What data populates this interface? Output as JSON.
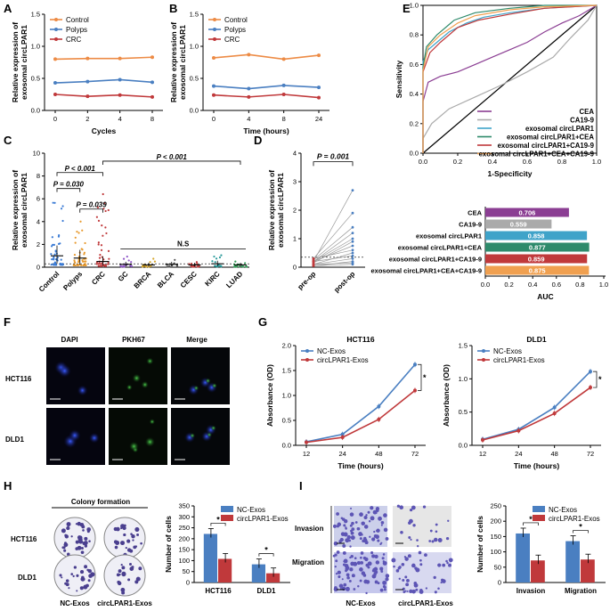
{
  "colors": {
    "control": "#ED8B45",
    "polyps": "#4A7FC1",
    "crc": "#C0393B",
    "nc": "#4A7FC1",
    "circ": "#C0393B",
    "cea": "#8B3E93",
    "ca199": "#AAAAAA",
    "circ_only": "#3FA3C9",
    "circ_cea": "#2E8A6B",
    "circ_ca199": "#C0393B",
    "circ_all": "#F0A050"
  },
  "panels": {
    "A": {
      "label": "A"
    },
    "B": {
      "label": "B"
    },
    "C": {
      "label": "C"
    },
    "D": {
      "label": "D"
    },
    "E": {
      "label": "E"
    },
    "F": {
      "label": "F"
    },
    "G": {
      "label": "G"
    },
    "H": {
      "label": "H"
    },
    "I": {
      "label": "I"
    }
  },
  "chart_data": [
    {
      "id": "A",
      "type": "line",
      "xlabel": "Cycles",
      "ylabel": "Relative expression of exosomal circLPAR1",
      "x": [
        0,
        2,
        4,
        8
      ],
      "ylim": [
        0,
        1.5
      ],
      "yticks": [
        0.0,
        0.5,
        1.0,
        1.5
      ],
      "series": [
        {
          "name": "Control",
          "values": [
            0.8,
            0.81,
            0.81,
            0.83
          ]
        },
        {
          "name": "Polyps",
          "values": [
            0.43,
            0.45,
            0.48,
            0.44
          ]
        },
        {
          "name": "CRC",
          "values": [
            0.25,
            0.22,
            0.24,
            0.21
          ]
        }
      ],
      "legend": "top-left"
    },
    {
      "id": "B",
      "type": "line",
      "xlabel": "Time (hours)",
      "ylabel": "Relative expression of exosomal circLPAR1",
      "x": [
        0,
        4,
        8,
        24
      ],
      "ylim": [
        0,
        1.5
      ],
      "yticks": [
        0.0,
        0.5,
        1.0,
        1.5
      ],
      "series": [
        {
          "name": "Control",
          "values": [
            0.82,
            0.87,
            0.8,
            0.86
          ]
        },
        {
          "name": "Polyps",
          "values": [
            0.38,
            0.34,
            0.39,
            0.36
          ]
        },
        {
          "name": "CRC",
          "values": [
            0.24,
            0.21,
            0.25,
            0.2
          ]
        }
      ],
      "legend": "top-left"
    },
    {
      "id": "C",
      "type": "scatter",
      "ylabel": "Relative expression of exosomal circLPAR1",
      "categories": [
        "Control",
        "Polyps",
        "CRC",
        "GC",
        "BRCA",
        "BLCA",
        "CESC",
        "KIRC",
        "LUAD"
      ],
      "ylim": [
        0,
        10
      ],
      "yticks": [
        0,
        2,
        4,
        6,
        8,
        10
      ],
      "medians": [
        1.0,
        0.8,
        0.5,
        0.25,
        0.2,
        0.25,
        0.2,
        0.3,
        0.2
      ],
      "maxima": [
        6.3,
        4.2,
        7.2,
        1.0,
        0.8,
        1.0,
        0.6,
        1.1,
        0.8
      ],
      "annotations": [
        {
          "text": "P = 0.030"
        },
        {
          "text": "P = 0.039"
        },
        {
          "text": "P < 0.001"
        },
        {
          "text": "P < 0.001"
        },
        {
          "text": "N.S"
        }
      ]
    },
    {
      "id": "D",
      "type": "line",
      "ylabel": "Relative expression of exosomal circLPAR1",
      "categories": [
        "pre-op",
        "post-op"
      ],
      "ylim": [
        0,
        4
      ],
      "yticks": [
        0,
        1,
        2,
        3,
        4
      ],
      "annotation": "P = 0.001",
      "paired": [
        [
          0.2,
          2.7
        ],
        [
          0.3,
          1.9
        ],
        [
          0.25,
          1.4
        ],
        [
          0.2,
          1.2
        ],
        [
          0.2,
          1.0
        ],
        [
          0.15,
          0.9
        ],
        [
          0.2,
          0.75
        ],
        [
          0.3,
          0.6
        ],
        [
          0.1,
          0.5
        ],
        [
          0.2,
          0.4
        ],
        [
          0.1,
          0.3
        ],
        [
          0.05,
          0.2
        ],
        [
          0.1,
          0.15
        ],
        [
          0.05,
          0.1
        ]
      ]
    },
    {
      "id": "E1",
      "type": "line",
      "xlabel": "1-Specificity",
      "ylabel": "Sensitivity",
      "xlim": [
        0,
        1.0
      ],
      "ylim": [
        0,
        1.0
      ],
      "xticks": [
        0.0,
        0.2,
        0.4,
        0.6,
        0.8,
        1.0
      ],
      "yticks": [
        0.0,
        0.2,
        0.4,
        0.6,
        0.8,
        1.0
      ],
      "series": [
        {
          "name": "CEA"
        },
        {
          "name": "CA19-9"
        },
        {
          "name": "exosomal circLPAR1"
        },
        {
          "name": "exosomal circLPAR1+CEA"
        },
        {
          "name": "exosomal circLPAR1+CA19-9"
        },
        {
          "name": "exosomal circLPAR1+CEA+CA19-9"
        }
      ],
      "legend": "bottom-right"
    },
    {
      "id": "E2",
      "type": "bar",
      "xlabel": "AUC",
      "xlim": [
        0,
        1.0
      ],
      "xticks": [
        0.0,
        0.2,
        0.4,
        0.6,
        0.8,
        1.0
      ],
      "categories": [
        "CEA",
        "CA19-9",
        "exosomal circLPAR1",
        "exosomal circLPAR1+CEA",
        "exosomal circLPAR1+CA19-9",
        "exosomal circLPAR1+CEA+CA19-9"
      ],
      "values": [
        0.706,
        0.559,
        0.858,
        0.877,
        0.859,
        0.875
      ],
      "labels": [
        "0.706",
        "0.559",
        "0.858",
        "0.877",
        "0.859",
        "0.875"
      ]
    },
    {
      "id": "G1",
      "type": "line",
      "title": "HCT116",
      "xlabel": "Time (hours)",
      "ylabel": "Absorbance (OD)",
      "categories": [
        "12",
        "24",
        "48",
        "72"
      ],
      "ylim": [
        0,
        2.0
      ],
      "yticks": [
        0.0,
        0.5,
        1.0,
        1.5,
        2.0
      ],
      "series": [
        {
          "name": "NC-Exos",
          "values": [
            0.07,
            0.22,
            0.78,
            1.62
          ]
        },
        {
          "name": "circLPAR1-Exos",
          "values": [
            0.06,
            0.16,
            0.52,
            1.1
          ]
        }
      ],
      "annotation": "*"
    },
    {
      "id": "G2",
      "type": "line",
      "title": "DLD1",
      "xlabel": "Time (hours)",
      "ylabel": "Absorbance (OD)",
      "categories": [
        "12",
        "24",
        "48",
        "72"
      ],
      "ylim": [
        0,
        1.5
      ],
      "yticks": [
        0.0,
        0.5,
        1.0,
        1.5
      ],
      "series": [
        {
          "name": "NC-Exos",
          "values": [
            0.09,
            0.24,
            0.57,
            1.11
          ]
        },
        {
          "name": "circLPAR1-Exos",
          "values": [
            0.08,
            0.22,
            0.48,
            0.87
          ]
        }
      ],
      "annotation": "*"
    },
    {
      "id": "H",
      "type": "bar",
      "ylabel": "Number of cells",
      "categories": [
        "HCT116",
        "DLD1"
      ],
      "ylim": [
        0,
        350
      ],
      "yticks": [
        0,
        50,
        100,
        150,
        200,
        250,
        300,
        350
      ],
      "series": [
        {
          "name": "NC-Exos",
          "values": [
            222,
            83
          ]
        },
        {
          "name": "circLPAR1-Exos",
          "values": [
            108,
            42
          ]
        }
      ],
      "annotation": "*"
    },
    {
      "id": "I",
      "type": "bar",
      "ylabel": "Number of cells",
      "categories": [
        "Invasion",
        "Migration"
      ],
      "ylim": [
        0,
        250
      ],
      "yticks": [
        0,
        50,
        100,
        150,
        200,
        250
      ],
      "series": [
        {
          "name": "NC-Exos",
          "values": [
            160,
            135
          ]
        },
        {
          "name": "circLPAR1-Exos",
          "values": [
            72,
            75
          ]
        }
      ],
      "annotation": "*"
    }
  ],
  "panel_F": {
    "columns": [
      "DAPI",
      "PKH67",
      "Merge"
    ],
    "rows": [
      "HCT116",
      "DLD1"
    ]
  },
  "panel_H_images": {
    "title": "Colony formation",
    "rows": [
      "HCT116",
      "DLD1"
    ],
    "columns": [
      "NC-Exos",
      "circLPAR1-Exos"
    ]
  },
  "panel_I_images": {
    "rows": [
      "Invasion",
      "Migration"
    ],
    "columns": [
      "NC-Exos",
      "circLPAR1-Exos"
    ]
  }
}
